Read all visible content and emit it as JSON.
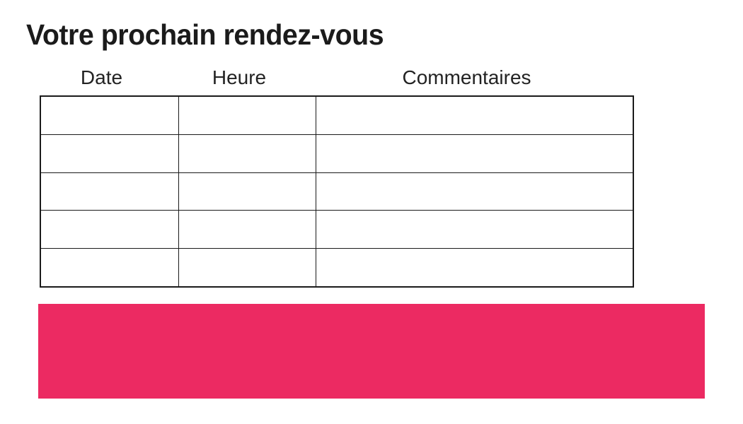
{
  "title": "Votre prochain rendez-vous",
  "table": {
    "headers": [
      "Date",
      "Heure",
      "Commentaires"
    ],
    "rows": [
      [
        "",
        "",
        ""
      ],
      [
        "",
        "",
        ""
      ],
      [
        "",
        "",
        ""
      ],
      [
        "",
        "",
        ""
      ],
      [
        "",
        "",
        ""
      ]
    ]
  },
  "colors": {
    "accent_pink": "#ec2a62",
    "text": "#1b1b1b",
    "table_border": "#1a1a1a"
  }
}
